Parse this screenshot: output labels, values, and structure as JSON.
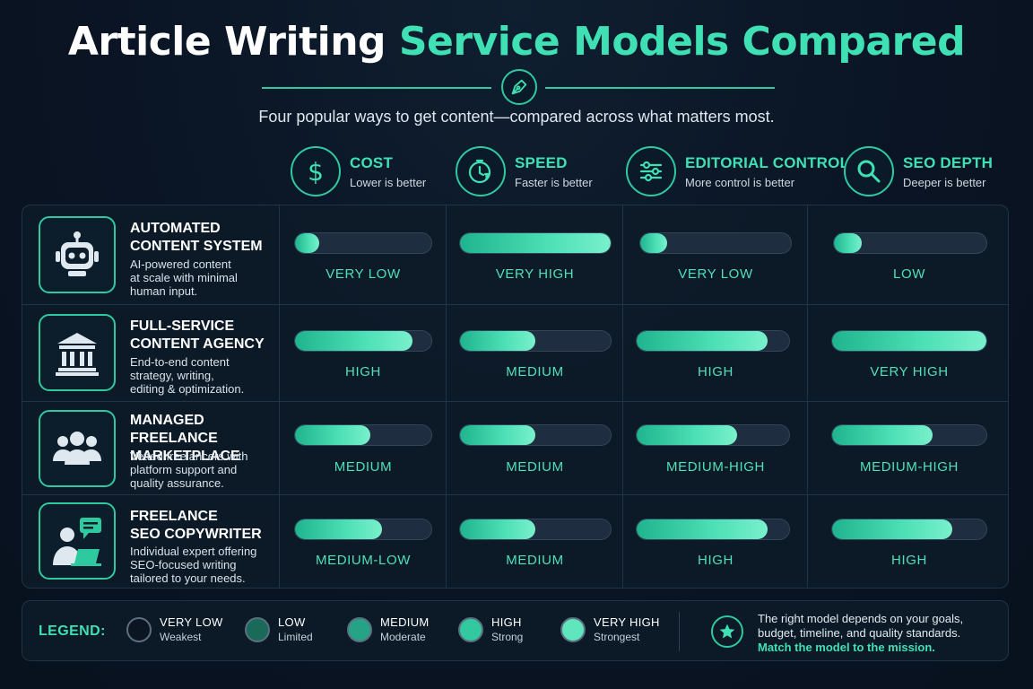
{
  "title": {
    "part1": "Article Writing",
    "part2": "Service Models Compared"
  },
  "subtitle": "Four popular ways to get content—compared across what matters most.",
  "criteria": [
    {
      "name": "COST",
      "sub": "Lower is better",
      "icon": "dollar-icon"
    },
    {
      "name": "SPEED",
      "sub": "Faster is better",
      "icon": "stopwatch-icon"
    },
    {
      "name": "EDITORIAL CONTROL",
      "sub": "More control is better",
      "icon": "sliders-icon"
    },
    {
      "name": "SEO DEPTH",
      "sub": "Deeper is better",
      "icon": "magnifier-icon"
    }
  ],
  "models": [
    {
      "name_lines": [
        "AUTOMATED",
        "CONTENT SYSTEM"
      ],
      "desc_lines": [
        "AI-powered content",
        "at scale with minimal",
        "human input."
      ],
      "icon": "robot-icon",
      "ratings": [
        {
          "label": "VERY LOW",
          "level": 0.18
        },
        {
          "label": "VERY HIGH",
          "level": 1.0
        },
        {
          "label": "VERY LOW",
          "level": 0.18
        },
        {
          "label": "LOW",
          "level": 0.18
        }
      ]
    },
    {
      "name_lines": [
        "FULL-SERVICE",
        "CONTENT AGENCY"
      ],
      "desc_lines": [
        "End-to-end content",
        "strategy, writing,",
        "editing & optimization."
      ],
      "icon": "bank-building-icon",
      "ratings": [
        {
          "label": "HIGH",
          "level": 0.86
        },
        {
          "label": "MEDIUM",
          "level": 0.5
        },
        {
          "label": "HIGH",
          "level": 0.86
        },
        {
          "label": "VERY HIGH",
          "level": 1.0
        }
      ]
    },
    {
      "name_lines": [
        "MANAGED FREELANCE",
        "MARKETPLACE"
      ],
      "desc_lines": [
        "Vetted freelancers with",
        "platform support and",
        "quality assurance."
      ],
      "icon": "group-icon",
      "ratings": [
        {
          "label": "MEDIUM",
          "level": 0.55
        },
        {
          "label": "MEDIUM",
          "level": 0.5
        },
        {
          "label": "MEDIUM-HIGH",
          "level": 0.66
        },
        {
          "label": "MEDIUM-HIGH",
          "level": 0.65
        }
      ]
    },
    {
      "name_lines": [
        "FREELANCE",
        "SEO COPYWRITER"
      ],
      "desc_lines": [
        "Individual expert offering",
        "SEO-focused writing",
        "tailored to your needs."
      ],
      "icon": "writer-laptop-icon",
      "ratings": [
        {
          "label": "MEDIUM-LOW",
          "level": 0.64
        },
        {
          "label": "MEDIUM",
          "level": 0.5
        },
        {
          "label": "HIGH",
          "level": 0.86
        },
        {
          "label": "HIGH",
          "level": 0.78
        }
      ]
    }
  ],
  "legend": {
    "title": "LEGEND:",
    "items": [
      {
        "label": "VERY LOW",
        "sub": "Weakest",
        "color": "#0b1622"
      },
      {
        "label": "LOW",
        "sub": "Limited",
        "color": "#1a6a5a"
      },
      {
        "label": "MEDIUM",
        "sub": "Moderate",
        "color": "#26a386"
      },
      {
        "label": "HIGH",
        "sub": "Strong",
        "color": "#33c9a0"
      },
      {
        "label": "VERY HIGH",
        "sub": "Strongest",
        "color": "#5fe6bd"
      }
    ],
    "note_lines": [
      "The right model depends on your goals,",
      "budget, timeline, and quality standards."
    ],
    "cta": "Match the model to the mission."
  },
  "colors": {
    "accent": "#3fe0b4",
    "background": "#0a1424",
    "border": "#1f3446"
  }
}
